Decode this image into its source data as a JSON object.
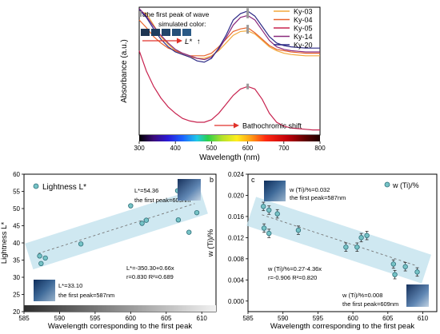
{
  "chart_data": [
    {
      "panel_label": "a",
      "type": "line",
      "xlabel": "Wavelength (nm)",
      "ylabel": "Absorbance (a.u.)",
      "xlim": [
        300,
        800
      ],
      "ylim": [
        0,
        1
      ],
      "xticks": [
        "300",
        "400",
        "500",
        "600",
        "700",
        "800"
      ],
      "y_tick_labels": false,
      "grid": false,
      "legend_position": "top-right",
      "annotations": {
        "peak_marker_label": "the first peak of wave",
        "simulated_color_label": "simulated color:",
        "lightness_label": "L*",
        "lightness_arrow": "↑",
        "shift_label": "Bathochromic shift"
      },
      "simulated_colors": [
        "#1e3552",
        "#1f3d5e",
        "#22456a",
        "#264f78",
        "#2a5a86"
      ],
      "series": [
        {
          "name": "Ky-03",
          "color": "#f2a93b",
          "x": [
            300,
            320,
            340,
            360,
            380,
            400,
            420,
            440,
            460,
            480,
            500,
            520,
            540,
            560,
            580,
            600,
            620,
            640,
            660,
            680,
            700,
            720,
            740,
            760,
            780,
            800
          ],
          "y": [
            0.97,
            0.95,
            0.86,
            0.77,
            0.71,
            0.66,
            0.63,
            0.61,
            0.6,
            0.6,
            0.62,
            0.66,
            0.72,
            0.78,
            0.81,
            0.815,
            0.79,
            0.74,
            0.69,
            0.66,
            0.64,
            0.63,
            0.625,
            0.62,
            0.62,
            0.62
          ]
        },
        {
          "name": "Ky-04",
          "color": "#e8632c",
          "x": [
            300,
            320,
            340,
            360,
            380,
            400,
            420,
            440,
            460,
            480,
            500,
            520,
            540,
            560,
            580,
            600,
            620,
            640,
            660,
            680,
            700,
            720,
            740,
            760,
            780,
            800
          ],
          "y": [
            0.9,
            0.84,
            0.77,
            0.72,
            0.68,
            0.66,
            0.64,
            0.62,
            0.62,
            0.62,
            0.64,
            0.69,
            0.75,
            0.81,
            0.83,
            0.84,
            0.8,
            0.75,
            0.7,
            0.67,
            0.66,
            0.65,
            0.645,
            0.64,
            0.64,
            0.64
          ]
        },
        {
          "name": "Ky-05",
          "color": "#c8234f",
          "x": [
            300,
            320,
            340,
            360,
            380,
            400,
            420,
            440,
            460,
            480,
            500,
            520,
            540,
            560,
            580,
            600,
            620,
            640,
            660,
            680,
            700,
            720,
            740,
            760,
            780,
            800
          ],
          "y": [
            0.66,
            0.5,
            0.38,
            0.29,
            0.22,
            0.17,
            0.13,
            0.11,
            0.1,
            0.1,
            0.12,
            0.17,
            0.24,
            0.31,
            0.36,
            0.38,
            0.36,
            0.28,
            0.17,
            0.1,
            0.07,
            0.055,
            0.05,
            0.045,
            0.04,
            0.04
          ]
        },
        {
          "name": "Ky-14",
          "color": "#8a2a7c",
          "x": [
            300,
            320,
            340,
            360,
            380,
            400,
            420,
            440,
            460,
            480,
            500,
            520,
            540,
            560,
            580,
            600,
            620,
            640,
            660,
            680,
            700,
            720,
            740,
            760,
            780,
            800
          ],
          "y": [
            0.99,
            0.93,
            0.85,
            0.78,
            0.72,
            0.67,
            0.64,
            0.62,
            0.6,
            0.59,
            0.61,
            0.67,
            0.76,
            0.86,
            0.92,
            0.935,
            0.9,
            0.82,
            0.74,
            0.69,
            0.67,
            0.66,
            0.655,
            0.65,
            0.65,
            0.65
          ]
        },
        {
          "name": "Ky-20",
          "color": "#2d2a86",
          "x": [
            300,
            320,
            340,
            360,
            380,
            400,
            420,
            440,
            460,
            480,
            500,
            520,
            540,
            560,
            580,
            600,
            620,
            640,
            660,
            680,
            700,
            720,
            740,
            760,
            780,
            800
          ],
          "y": [
            0.98,
            0.92,
            0.83,
            0.75,
            0.69,
            0.65,
            0.63,
            0.61,
            0.58,
            0.57,
            0.6,
            0.68,
            0.78,
            0.9,
            0.95,
            0.97,
            0.93,
            0.85,
            0.77,
            0.72,
            0.7,
            0.69,
            0.685,
            0.68,
            0.68,
            0.68
          ]
        }
      ],
      "peak_markers": [
        {
          "x": 600,
          "y": 0.38
        },
        {
          "x": 600,
          "y": 0.815
        },
        {
          "x": 600,
          "y": 0.84
        },
        {
          "x": 600,
          "y": 0.935
        },
        {
          "x": 600,
          "y": 0.97
        }
      ]
    },
    {
      "panel_label": "b",
      "type": "scatter",
      "xlabel": "Wavelength corresponding to the first peak",
      "ylabel": "Lightness L*",
      "legend": "Lightness L*",
      "legend_position": "top-left",
      "xlim": [
        585,
        612
      ],
      "ylim": [
        20,
        60
      ],
      "xticks": [
        "585",
        "590",
        "595",
        "600",
        "605",
        "610"
      ],
      "yticks": [
        "20",
        "25",
        "30",
        "35",
        "40",
        "45",
        "50",
        "55",
        "60"
      ],
      "grid": false,
      "points": [
        {
          "x": 587.2,
          "y": 36.2
        },
        {
          "x": 587.4,
          "y": 34.0
        },
        {
          "x": 588.0,
          "y": 35.6
        },
        {
          "x": 593.0,
          "y": 39.7
        },
        {
          "x": 600.0,
          "y": 50.8
        },
        {
          "x": 601.6,
          "y": 45.7
        },
        {
          "x": 602.2,
          "y": 46.6
        },
        {
          "x": 606.6,
          "y": 55.2
        },
        {
          "x": 606.7,
          "y": 46.7
        },
        {
          "x": 608.2,
          "y": 43.1
        },
        {
          "x": 609.3,
          "y": 48.8
        }
      ],
      "fit": {
        "x": [
          587,
          609
        ],
        "y": [
          36.92,
          51.44
        ]
      },
      "annotations": {
        "top_value": "L*=54.36",
        "top_peak": "the first peak=609nm",
        "bottom_value": "L*=33.10",
        "bottom_peak": "the first peak=587nm",
        "equation": "L*=-350.30+0.66x",
        "stats": "r=0.830  R²=0.689"
      }
    },
    {
      "panel_label": "c",
      "type": "scatter",
      "xlabel": "Wavelength corresponding to the first peak",
      "ylabel": "w (Ti)/%",
      "legend": "w (Ti)/%",
      "legend_position": "top-right",
      "xlim": [
        585,
        612
      ],
      "ylim": [
        -0.002,
        0.024
      ],
      "xticks": [
        "585",
        "590",
        "595",
        "600",
        "605",
        "610"
      ],
      "yticks": [
        "0.000",
        "0.004",
        "0.008",
        "0.012",
        "0.016",
        "0.020",
        "0.024"
      ],
      "grid": false,
      "points": [
        {
          "x": 587.2,
          "y": 0.0179,
          "err": 0.0008
        },
        {
          "x": 588.0,
          "y": 0.0172,
          "err": 0.0008
        },
        {
          "x": 587.3,
          "y": 0.0138,
          "err": 0.0008
        },
        {
          "x": 588.0,
          "y": 0.0128,
          "err": 0.0008
        },
        {
          "x": 589.2,
          "y": 0.0165,
          "err": 0.0008
        },
        {
          "x": 592.2,
          "y": 0.0134,
          "err": 0.0008
        },
        {
          "x": 599.0,
          "y": 0.0102,
          "err": 0.0008
        },
        {
          "x": 600.6,
          "y": 0.0102,
          "err": 0.0008
        },
        {
          "x": 601.2,
          "y": 0.012,
          "err": 0.0008
        },
        {
          "x": 602.0,
          "y": 0.0124,
          "err": 0.0008
        },
        {
          "x": 605.8,
          "y": 0.007,
          "err": 0.0008
        },
        {
          "x": 606.0,
          "y": 0.005,
          "err": 0.0008
        },
        {
          "x": 607.5,
          "y": 0.0065,
          "err": 0.0008
        },
        {
          "x": 609.2,
          "y": 0.0055,
          "err": 0.0008
        }
      ],
      "fit": {
        "x": [
          587,
          609
        ],
        "y": [
          0.01632,
          0.00672
        ]
      },
      "annotations": {
        "top_value": "w (Ti)/%=0.032",
        "top_peak": "the first peak=587nm",
        "equation": "w (Ti)/%=0.27-4.36x",
        "stats": "r=-0.906  R²=0.820",
        "bottom_value": "w (Ti)/%=0.008",
        "bottom_peak": "the first peak=609nm"
      }
    }
  ]
}
